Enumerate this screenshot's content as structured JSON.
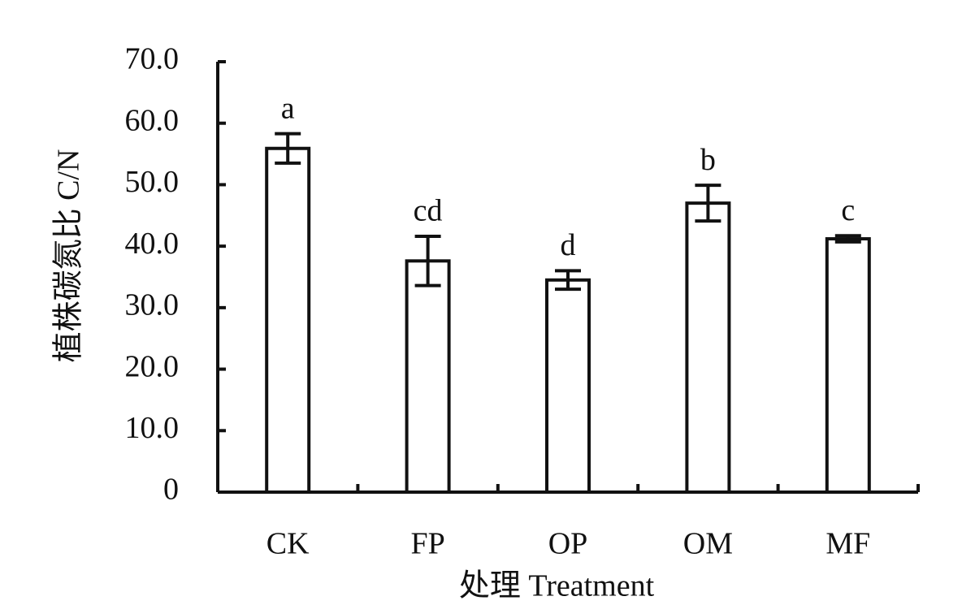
{
  "chart_data": {
    "type": "bar",
    "x_label": "处理 Treatment",
    "y_label": "植株碳氮比 C/N",
    "categories": [
      "CK",
      "FP",
      "OP",
      "OM",
      "MF"
    ],
    "values": [
      55.9,
      37.6,
      34.5,
      47.0,
      41.2
    ],
    "errors": [
      2.4,
      4.0,
      1.5,
      2.9,
      0.5
    ],
    "annotations": [
      "a",
      "cd",
      "d",
      "b",
      "c"
    ],
    "color": "#ffffff",
    "ylim": [
      0,
      70
    ],
    "yticks": [
      0,
      {
        "value": 10,
        "label": "10.0"
      },
      {
        "value": 20,
        "label": "20.0"
      },
      {
        "value": 30,
        "label": "30.0"
      },
      {
        "value": 40,
        "label": "40.0"
      },
      {
        "value": 50,
        "label": "50.0"
      },
      {
        "value": 60,
        "label": "60.0"
      },
      {
        "value": 70,
        "label": "70.0"
      }
    ],
    "grid": false
  }
}
